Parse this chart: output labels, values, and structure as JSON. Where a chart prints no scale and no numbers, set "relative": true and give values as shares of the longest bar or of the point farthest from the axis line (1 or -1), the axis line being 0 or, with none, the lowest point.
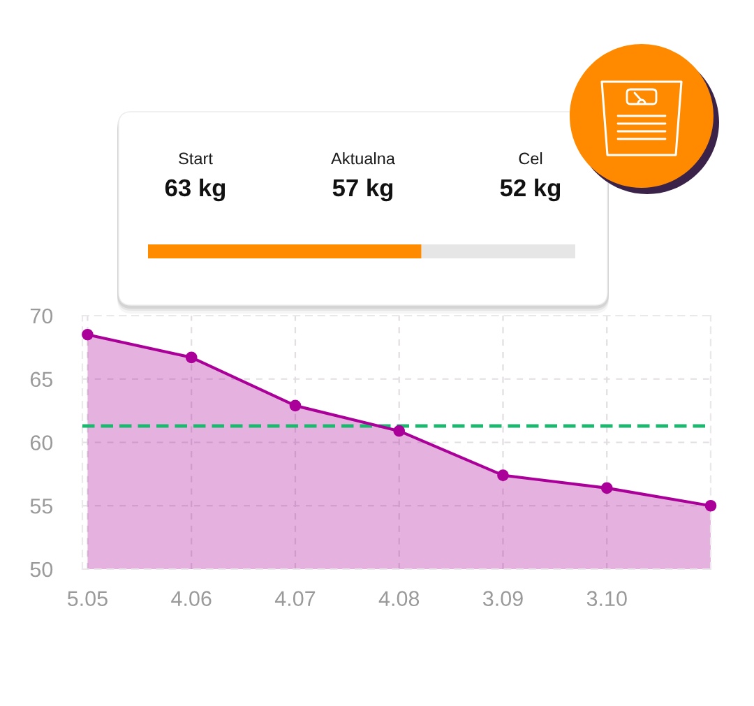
{
  "chart_data": [
    {
      "type": "other",
      "annotations": [
        "Start",
        "63 kg",
        "Aktualna",
        "57 kg",
        "Cel",
        "52 kg"
      ]
    },
    {
      "type": "bar",
      "orientation": "horizontal",
      "stacked": true,
      "relative": true,
      "categories": [
        null
      ],
      "series": [
        {
          "color": "#ff8c00",
          "values": [
            0.64
          ]
        },
        {
          "color": "#e6e6e6",
          "values": [
            0.36
          ]
        }
      ]
    },
    {
      "type": "area",
      "categories": [
        "5.05",
        "4.06",
        "4.07",
        "4.08",
        "3.09",
        "3.10",
        null
      ],
      "series": [
        {
          "color": "#aa0099",
          "values": [
            68.5,
            66.7,
            62.9,
            60.9,
            57.4,
            56.4,
            55.0
          ]
        }
      ],
      "ylim": [
        50,
        70
      ],
      "yticks": [
        50,
        55,
        60,
        65,
        70
      ],
      "grid": true,
      "marker": "circle",
      "line_style": "solid",
      "ref_lines": [
        {
          "axis": "y",
          "value": 61.3,
          "color": "#1db86f",
          "line_style": "dashed"
        }
      ]
    }
  ]
}
